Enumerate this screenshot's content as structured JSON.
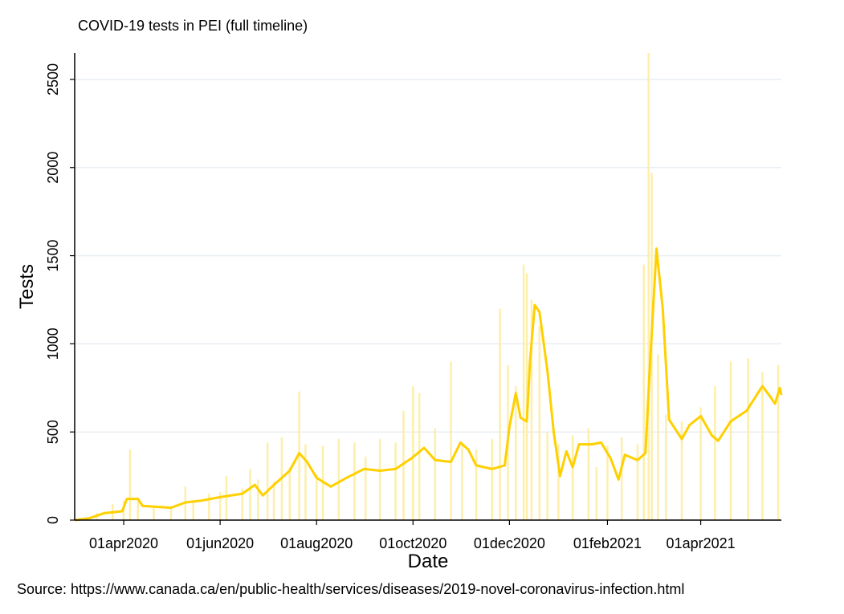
{
  "chart_data": {
    "type": "bar",
    "title": "COVID-19 tests in PEI (full timeline)",
    "xlabel": "Date",
    "ylabel": "Tests",
    "note": "Source: https://www.canada.ca/en/public-health/services/diseases/2019-novel-coronavirus-infection.html",
    "x_range": [
      "2020-03-01",
      "2021-05-22"
    ],
    "ylim": [
      0,
      2650
    ],
    "y_ticks": [
      0,
      500,
      1000,
      1500,
      2000,
      2500
    ],
    "x_ticks": [
      {
        "date": "2020-04-01",
        "label": "01apr2020"
      },
      {
        "date": "2020-06-01",
        "label": "01jun2020"
      },
      {
        "date": "2020-08-01",
        "label": "01aug2020"
      },
      {
        "date": "2020-10-01",
        "label": "01oct2020"
      },
      {
        "date": "2020-12-01",
        "label": "01dec2020"
      },
      {
        "date": "2021-02-01",
        "label": "01feb2021"
      },
      {
        "date": "2021-04-01",
        "label": "01apr2021"
      }
    ],
    "grid": true,
    "colors": {
      "bars": "#fdeea8",
      "line": "#ffd000",
      "grid": "#e8eef3",
      "axis": "#000000"
    },
    "series": [
      {
        "type": "bar",
        "values_note": "daily tests",
        "data": [
          [
            "2020-03-05",
            5
          ],
          [
            "2020-03-15",
            40
          ],
          [
            "2020-03-25",
            90
          ],
          [
            "2020-04-01",
            110
          ],
          [
            "2020-04-05",
            400
          ],
          [
            "2020-04-10",
            110
          ],
          [
            "2020-04-20",
            70
          ],
          [
            "2020-05-01",
            80
          ],
          [
            "2020-05-10",
            190
          ],
          [
            "2020-05-15",
            110
          ],
          [
            "2020-05-25",
            150
          ],
          [
            "2020-06-01",
            160
          ],
          [
            "2020-06-05",
            250
          ],
          [
            "2020-06-15",
            180
          ],
          [
            "2020-06-20",
            290
          ],
          [
            "2020-06-25",
            230
          ],
          [
            "2020-07-01",
            440
          ],
          [
            "2020-07-05",
            220
          ],
          [
            "2020-07-10",
            470
          ],
          [
            "2020-07-15",
            300
          ],
          [
            "2020-07-21",
            730
          ],
          [
            "2020-07-25",
            430
          ],
          [
            "2020-08-01",
            260
          ],
          [
            "2020-08-05",
            420
          ],
          [
            "2020-08-15",
            460
          ],
          [
            "2020-08-25",
            440
          ],
          [
            "2020-09-01",
            360
          ],
          [
            "2020-09-10",
            460
          ],
          [
            "2020-09-20",
            440
          ],
          [
            "2020-09-25",
            620
          ],
          [
            "2020-10-01",
            760
          ],
          [
            "2020-10-05",
            720
          ],
          [
            "2020-10-15",
            520
          ],
          [
            "2020-10-25",
            900
          ],
          [
            "2020-11-01",
            430
          ],
          [
            "2020-11-10",
            400
          ],
          [
            "2020-11-20",
            460
          ],
          [
            "2020-11-25",
            1200
          ],
          [
            "2020-11-30",
            880
          ],
          [
            "2020-12-05",
            760
          ],
          [
            "2020-12-10",
            1450
          ],
          [
            "2020-12-12",
            1400
          ],
          [
            "2020-12-15",
            1250
          ],
          [
            "2020-12-20",
            1100
          ],
          [
            "2020-12-25",
            500
          ],
          [
            "2021-01-01",
            430
          ],
          [
            "2021-01-10",
            480
          ],
          [
            "2021-01-20",
            520
          ],
          [
            "2021-01-25",
            300
          ],
          [
            "2021-02-01",
            420
          ],
          [
            "2021-02-10",
            470
          ],
          [
            "2021-02-20",
            430
          ],
          [
            "2021-02-24",
            1450
          ],
          [
            "2021-02-27",
            2650
          ],
          [
            "2021-03-01",
            1970
          ],
          [
            "2021-03-05",
            940
          ],
          [
            "2021-03-10",
            600
          ],
          [
            "2021-03-20",
            560
          ],
          [
            "2021-04-01",
            640
          ],
          [
            "2021-04-10",
            760
          ],
          [
            "2021-04-20",
            900
          ],
          [
            "2021-05-01",
            920
          ],
          [
            "2021-05-10",
            840
          ],
          [
            "2021-05-20",
            880
          ]
        ]
      },
      {
        "type": "line",
        "values_note": "rolling average",
        "data": [
          [
            "2020-03-01",
            0
          ],
          [
            "2020-03-10",
            10
          ],
          [
            "2020-03-20",
            40
          ],
          [
            "2020-03-31",
            50
          ],
          [
            "2020-04-03",
            120
          ],
          [
            "2020-04-10",
            120
          ],
          [
            "2020-04-13",
            80
          ],
          [
            "2020-05-01",
            70
          ],
          [
            "2020-05-10",
            100
          ],
          [
            "2020-05-20",
            110
          ],
          [
            "2020-06-01",
            130
          ],
          [
            "2020-06-15",
            150
          ],
          [
            "2020-06-23",
            200
          ],
          [
            "2020-06-28",
            140
          ],
          [
            "2020-07-05",
            200
          ],
          [
            "2020-07-15",
            280
          ],
          [
            "2020-07-21",
            380
          ],
          [
            "2020-07-26",
            330
          ],
          [
            "2020-08-01",
            240
          ],
          [
            "2020-08-10",
            190
          ],
          [
            "2020-08-20",
            240
          ],
          [
            "2020-08-31",
            290
          ],
          [
            "2020-09-10",
            280
          ],
          [
            "2020-09-20",
            290
          ],
          [
            "2020-09-30",
            350
          ],
          [
            "2020-10-08",
            410
          ],
          [
            "2020-10-15",
            340
          ],
          [
            "2020-10-25",
            330
          ],
          [
            "2020-10-31",
            440
          ],
          [
            "2020-11-05",
            400
          ],
          [
            "2020-11-10",
            310
          ],
          [
            "2020-11-20",
            290
          ],
          [
            "2020-11-28",
            310
          ],
          [
            "2020-12-01",
            530
          ],
          [
            "2020-12-05",
            720
          ],
          [
            "2020-12-08",
            580
          ],
          [
            "2020-12-12",
            560
          ],
          [
            "2020-12-14",
            900
          ],
          [
            "2020-12-17",
            1220
          ],
          [
            "2020-12-20",
            1180
          ],
          [
            "2020-12-25",
            850
          ],
          [
            "2020-12-29",
            500
          ],
          [
            "2021-01-02",
            250
          ],
          [
            "2021-01-06",
            390
          ],
          [
            "2021-01-10",
            300
          ],
          [
            "2021-01-14",
            430
          ],
          [
            "2021-01-22",
            430
          ],
          [
            "2021-01-28",
            440
          ],
          [
            "2021-02-03",
            350
          ],
          [
            "2021-02-08",
            230
          ],
          [
            "2021-02-12",
            370
          ],
          [
            "2021-02-20",
            340
          ],
          [
            "2021-02-25",
            380
          ],
          [
            "2021-02-28",
            900
          ],
          [
            "2021-03-04",
            1540
          ],
          [
            "2021-03-08",
            1200
          ],
          [
            "2021-03-12",
            570
          ],
          [
            "2021-03-20",
            460
          ],
          [
            "2021-03-25",
            540
          ],
          [
            "2021-04-01",
            590
          ],
          [
            "2021-04-08",
            480
          ],
          [
            "2021-04-12",
            450
          ],
          [
            "2021-04-20",
            560
          ],
          [
            "2021-04-30",
            620
          ],
          [
            "2021-05-10",
            760
          ],
          [
            "2021-05-15",
            700
          ],
          [
            "2021-05-18",
            660
          ],
          [
            "2021-05-21",
            750
          ],
          [
            "2021-05-22",
            710
          ]
        ]
      }
    ]
  }
}
